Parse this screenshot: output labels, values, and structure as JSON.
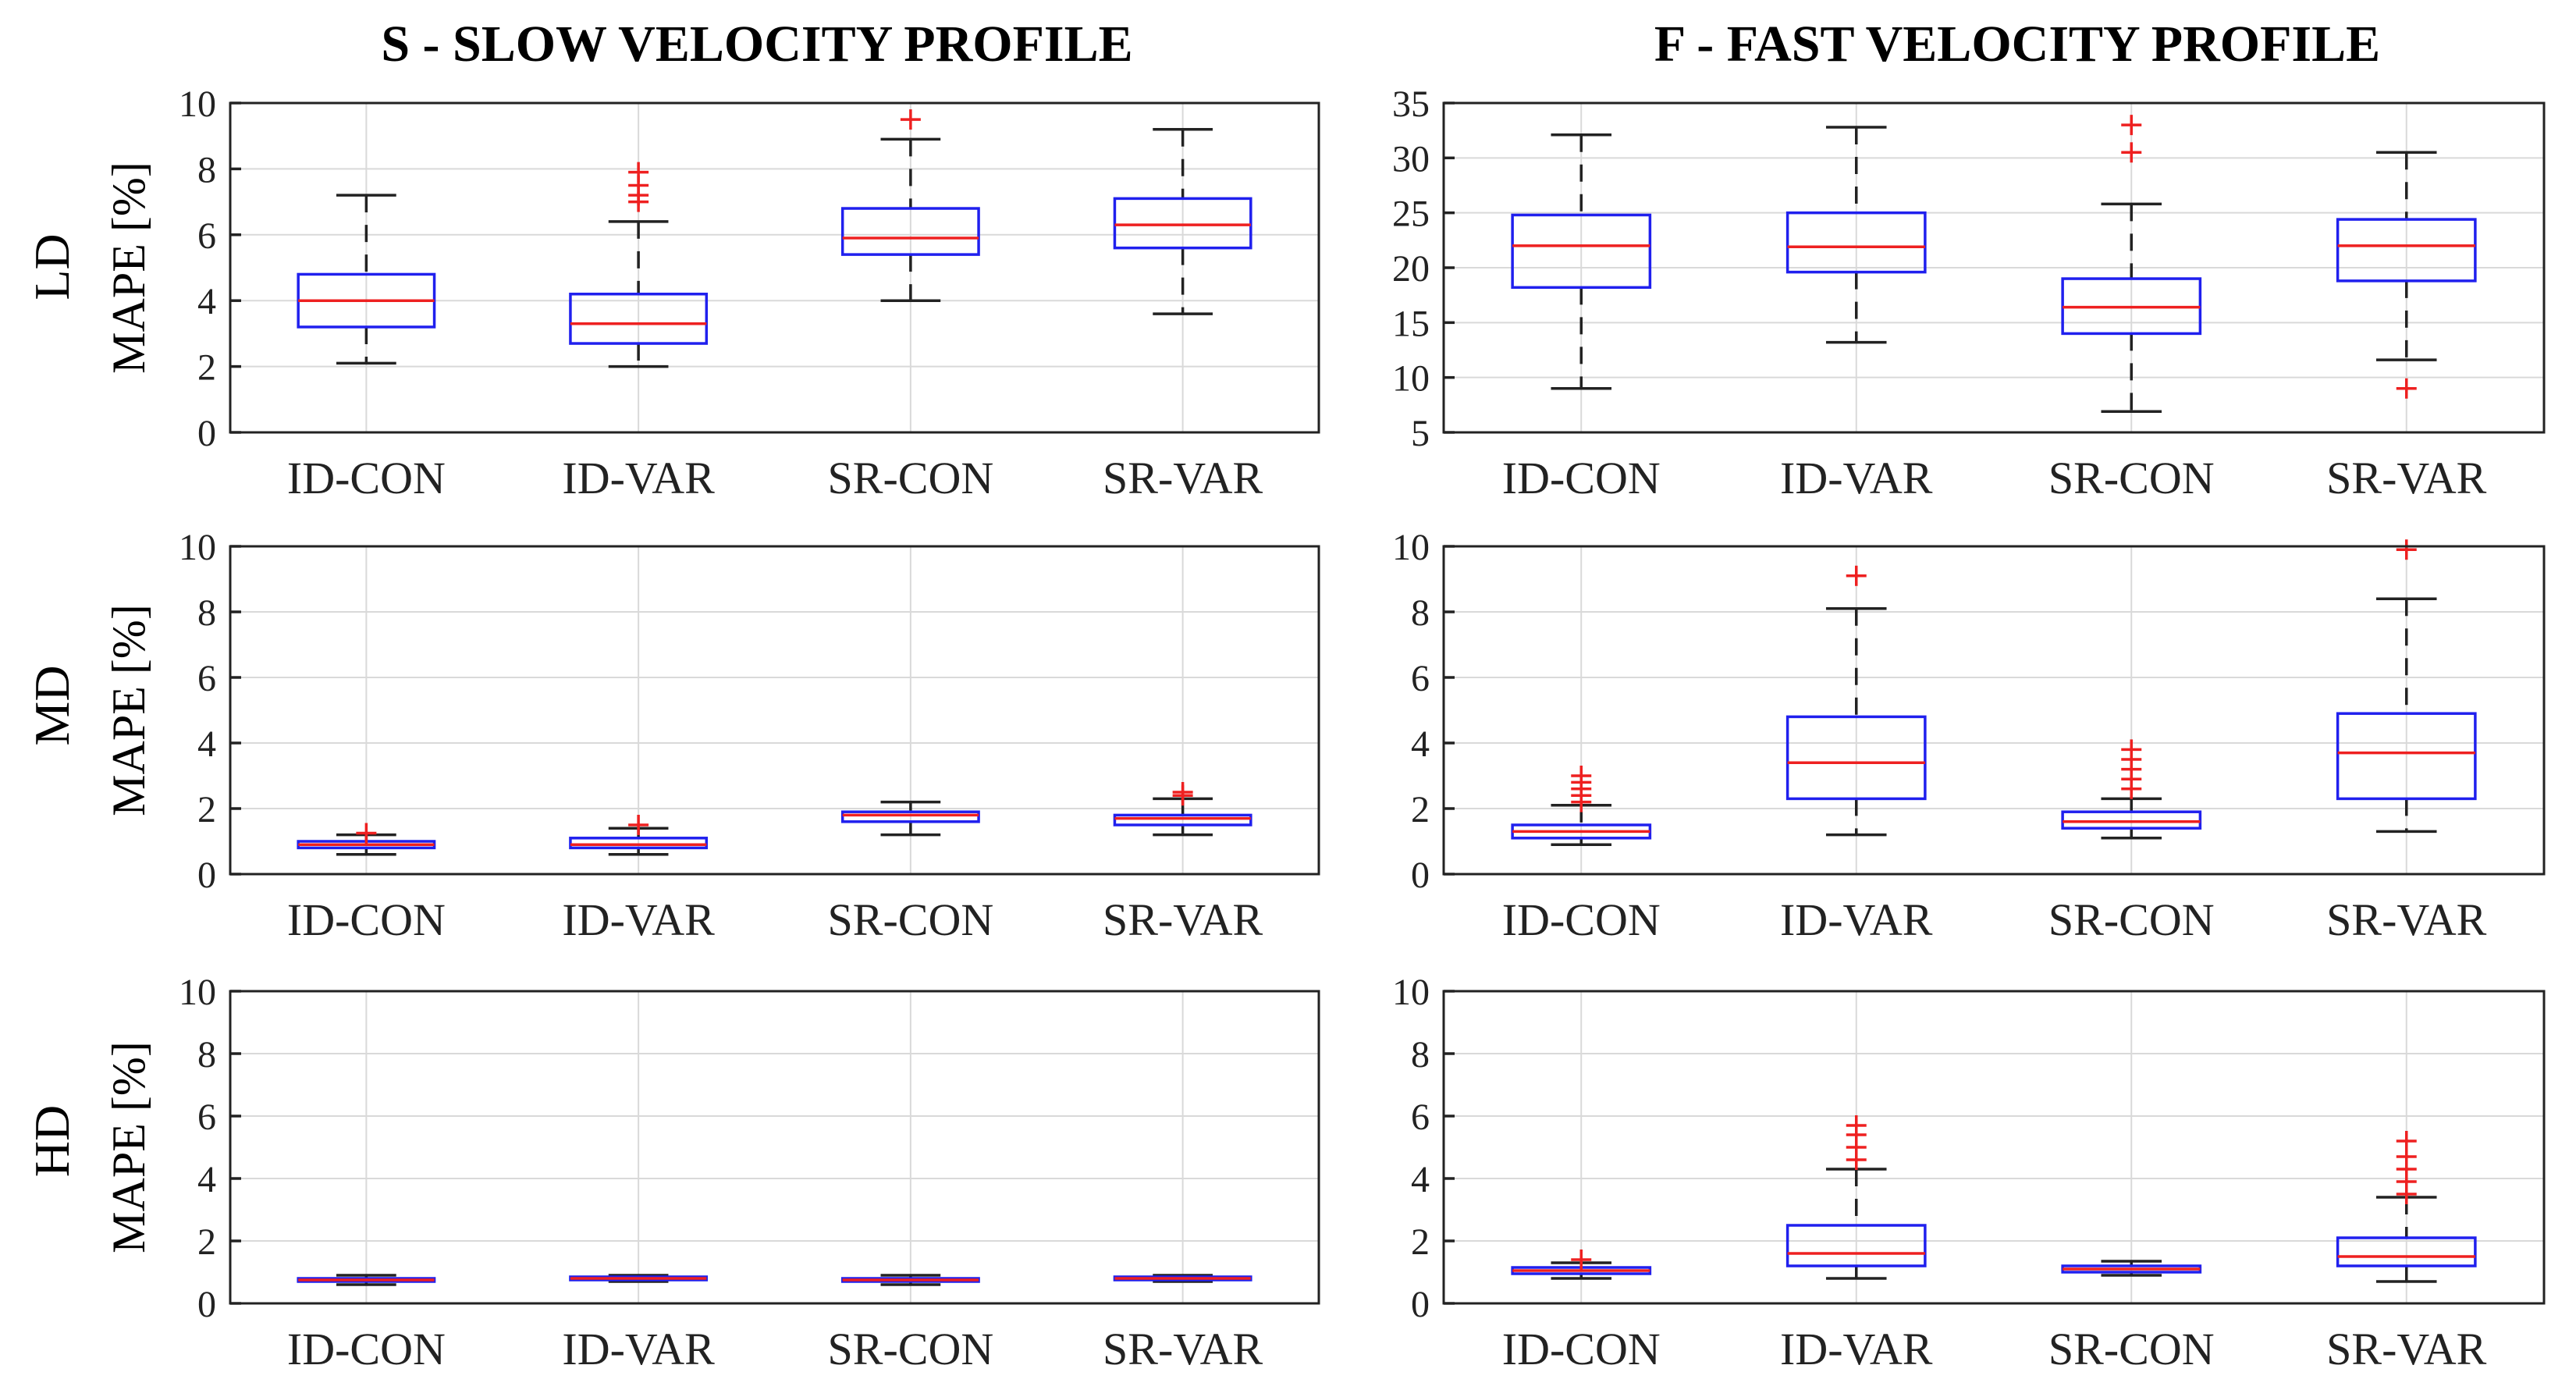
{
  "columns": [
    {
      "id": "slow",
      "title": "S - SLOW VELOCITY PROFILE"
    },
    {
      "id": "fast",
      "title": "F - FAST VELOCITY PROFILE"
    }
  ],
  "rows": [
    {
      "id": "ld",
      "label": "LD"
    },
    {
      "id": "md",
      "label": "MD"
    },
    {
      "id": "hd",
      "label": "HD"
    }
  ],
  "y_axis_label": "MAPE  [%]",
  "chart_data": [
    {
      "type": "box",
      "panel": "LD-slow",
      "ylabel": "MAPE  [%]",
      "ylim": [
        0,
        10
      ],
      "yticks": [
        0,
        2,
        4,
        6,
        8,
        10
      ],
      "grid": true,
      "categories": [
        "ID-CON",
        "ID-VAR",
        "SR-CON",
        "SR-VAR"
      ],
      "boxes": [
        {
          "min": 2.1,
          "q1": 3.2,
          "median": 4.0,
          "q3": 4.8,
          "max": 7.2,
          "outliers": []
        },
        {
          "min": 2.0,
          "q1": 2.7,
          "median": 3.3,
          "q3": 4.2,
          "max": 6.4,
          "outliers": [
            7.0,
            7.2,
            7.5,
            7.9
          ]
        },
        {
          "min": 4.0,
          "q1": 5.4,
          "median": 5.9,
          "q3": 6.8,
          "max": 8.9,
          "outliers": [
            9.5
          ]
        },
        {
          "min": 3.6,
          "q1": 5.6,
          "median": 6.3,
          "q3": 7.1,
          "max": 9.2,
          "outliers": []
        }
      ]
    },
    {
      "type": "box",
      "panel": "LD-fast",
      "ylabel": "",
      "ylim": [
        5,
        35
      ],
      "yticks": [
        5,
        10,
        15,
        20,
        25,
        30,
        35
      ],
      "grid": true,
      "categories": [
        "ID-CON",
        "ID-VAR",
        "SR-CON",
        "SR-VAR"
      ],
      "boxes": [
        {
          "min": 9.0,
          "q1": 18.2,
          "median": 22.0,
          "q3": 24.8,
          "max": 32.1,
          "outliers": []
        },
        {
          "min": 13.2,
          "q1": 19.6,
          "median": 21.9,
          "q3": 25.0,
          "max": 32.8,
          "outliers": []
        },
        {
          "min": 6.9,
          "q1": 14.0,
          "median": 16.4,
          "q3": 19.0,
          "max": 25.8,
          "outliers": [
            30.5,
            33.0
          ]
        },
        {
          "min": 11.6,
          "q1": 18.8,
          "median": 22.0,
          "q3": 24.4,
          "max": 30.5,
          "outliers": [
            9.0
          ]
        }
      ]
    },
    {
      "type": "box",
      "panel": "MD-slow",
      "ylabel": "MAPE  [%]",
      "ylim": [
        0,
        10
      ],
      "yticks": [
        0,
        2,
        4,
        6,
        8,
        10
      ],
      "grid": true,
      "categories": [
        "ID-CON",
        "ID-VAR",
        "SR-CON",
        "SR-VAR"
      ],
      "boxes": [
        {
          "min": 0.6,
          "q1": 0.8,
          "median": 0.9,
          "q3": 1.0,
          "max": 1.2,
          "outliers": [
            1.25
          ]
        },
        {
          "min": 0.6,
          "q1": 0.8,
          "median": 0.9,
          "q3": 1.1,
          "max": 1.4,
          "outliers": [
            1.5
          ]
        },
        {
          "min": 1.2,
          "q1": 1.6,
          "median": 1.8,
          "q3": 1.9,
          "max": 2.2,
          "outliers": []
        },
        {
          "min": 1.2,
          "q1": 1.5,
          "median": 1.7,
          "q3": 1.8,
          "max": 2.3,
          "outliers": [
            2.4,
            2.5
          ]
        }
      ]
    },
    {
      "type": "box",
      "panel": "MD-fast",
      "ylabel": "",
      "ylim": [
        0,
        10
      ],
      "yticks": [
        0,
        2,
        4,
        6,
        8,
        10
      ],
      "grid": true,
      "categories": [
        "ID-CON",
        "ID-VAR",
        "SR-CON",
        "SR-VAR"
      ],
      "boxes": [
        {
          "min": 0.9,
          "q1": 1.1,
          "median": 1.3,
          "q3": 1.5,
          "max": 2.1,
          "outliers": [
            2.2,
            2.4,
            2.6,
            2.8,
            3.0
          ]
        },
        {
          "min": 1.2,
          "q1": 2.3,
          "median": 3.4,
          "q3": 4.8,
          "max": 8.1,
          "outliers": [
            9.1
          ]
        },
        {
          "min": 1.1,
          "q1": 1.4,
          "median": 1.6,
          "q3": 1.9,
          "max": 2.3,
          "outliers": [
            2.6,
            2.9,
            3.2,
            3.5,
            3.8
          ]
        },
        {
          "min": 1.3,
          "q1": 2.3,
          "median": 3.7,
          "q3": 4.9,
          "max": 8.4,
          "outliers": [
            9.9
          ]
        }
      ]
    },
    {
      "type": "box",
      "panel": "HD-slow",
      "ylabel": "MAPE  [%]",
      "ylim": [
        0,
        10
      ],
      "yticks": [
        0,
        2,
        4,
        6,
        8,
        10
      ],
      "grid": true,
      "categories": [
        "ID-CON",
        "ID-VAR",
        "SR-CON",
        "SR-VAR"
      ],
      "boxes": [
        {
          "min": 0.6,
          "q1": 0.7,
          "median": 0.75,
          "q3": 0.8,
          "max": 0.9,
          "outliers": []
        },
        {
          "min": 0.7,
          "q1": 0.75,
          "median": 0.8,
          "q3": 0.85,
          "max": 0.9,
          "outliers": []
        },
        {
          "min": 0.6,
          "q1": 0.7,
          "median": 0.75,
          "q3": 0.8,
          "max": 0.9,
          "outliers": []
        },
        {
          "min": 0.7,
          "q1": 0.75,
          "median": 0.8,
          "q3": 0.85,
          "max": 0.9,
          "outliers": []
        }
      ]
    },
    {
      "type": "box",
      "panel": "HD-fast",
      "ylabel": "",
      "ylim": [
        0,
        10
      ],
      "yticks": [
        0,
        2,
        4,
        6,
        8,
        10
      ],
      "grid": true,
      "categories": [
        "ID-CON",
        "ID-VAR",
        "SR-CON",
        "SR-VAR"
      ],
      "boxes": [
        {
          "min": 0.8,
          "q1": 0.95,
          "median": 1.05,
          "q3": 1.15,
          "max": 1.3,
          "outliers": [
            1.4
          ]
        },
        {
          "min": 0.8,
          "q1": 1.2,
          "median": 1.6,
          "q3": 2.5,
          "max": 4.3,
          "outliers": [
            4.6,
            5.0,
            5.4,
            5.7
          ]
        },
        {
          "min": 0.9,
          "q1": 1.0,
          "median": 1.1,
          "q3": 1.2,
          "max": 1.35,
          "outliers": []
        },
        {
          "min": 0.7,
          "q1": 1.2,
          "median": 1.5,
          "q3": 2.1,
          "max": 3.4,
          "outliers": [
            3.5,
            3.9,
            4.3,
            4.7,
            5.2
          ]
        }
      ]
    }
  ]
}
